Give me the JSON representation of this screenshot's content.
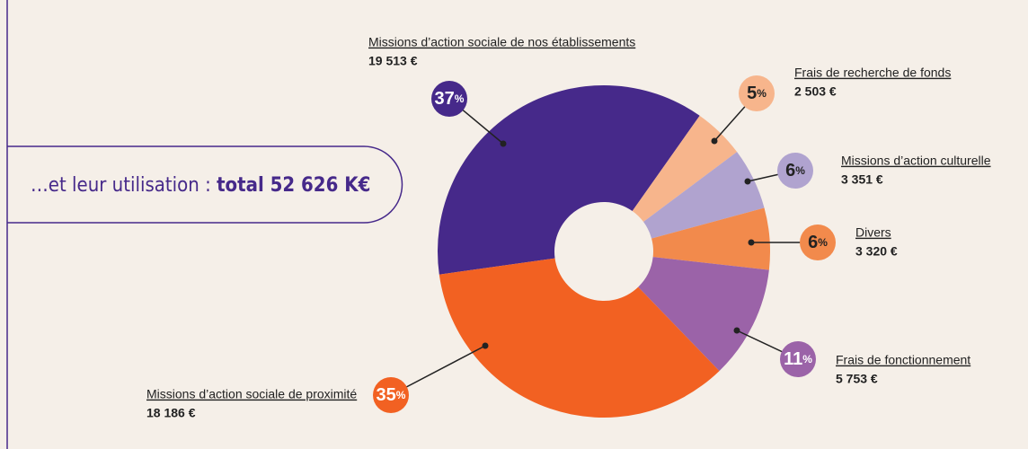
{
  "chart_data": {
    "type": "donut",
    "title": "…et leur utilisation : ",
    "title_total": "total 52 626 K€",
    "categories": [
      "Missions d’action sociale de nos établissements",
      "Frais de recherche de fonds",
      "Missions d’action culturelle",
      "Divers",
      "Frais de fonctionnement",
      "Missions d’action sociale de proximité"
    ],
    "values": [
      37,
      5,
      6,
      6,
      11,
      35
    ],
    "percent_sign": "%",
    "amount_labels": [
      "19 513 €",
      "2 503 €",
      "3 351 €",
      "3 320 €",
      "5 753 €",
      "18 186 €"
    ],
    "colors": [
      "#46298a",
      "#f7b58c",
      "#b0a3cf",
      "#f28a4c",
      "#9b63a8",
      "#f26122"
    ]
  }
}
